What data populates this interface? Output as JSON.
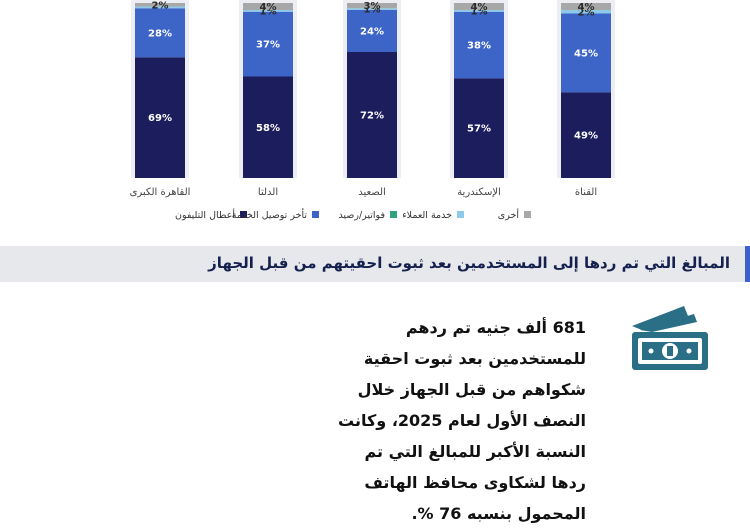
{
  "chart_data": {
    "type": "bar",
    "stacked": true,
    "categories": [
      "القاهرة الكبرى",
      "الدلتا",
      "الصعيد",
      "الإسكندرية",
      "القناة"
    ],
    "series": [
      {
        "name": "أعطال التليفون",
        "color": "#1c1d5c",
        "values": [
          69,
          58,
          72,
          57,
          49
        ],
        "labels": [
          "69%",
          "58%",
          "72%",
          "57%",
          "49%"
        ]
      },
      {
        "name": "تأخر توصيل الخدمة",
        "color": "#3d65c8",
        "values": [
          28,
          37,
          24,
          38,
          45
        ],
        "labels": [
          "28%",
          "37%",
          "24%",
          "38%",
          "45%"
        ]
      },
      {
        "name": "فواتير/رصيد",
        "color": "#2fa37a",
        "values": [
          0,
          0,
          0,
          0,
          0
        ],
        "labels": [
          "",
          "",
          "",
          "",
          ""
        ]
      },
      {
        "name": "خدمة العملاء",
        "color": "#8fc9ea",
        "values": [
          1,
          1,
          1,
          1,
          2
        ],
        "labels": [
          "",
          "1%",
          "1%",
          "1%",
          "2%"
        ]
      },
      {
        "name": "أخرى",
        "color": "#a8a8a8",
        "values": [
          2,
          4,
          3,
          4,
          4
        ],
        "labels": [
          "2%",
          "4%",
          "3%",
          "4%",
          "4%"
        ]
      }
    ],
    "ylim": [
      0,
      100
    ],
    "legend_position": "bottom",
    "grid": false
  },
  "section": {
    "title": "المبالغ التي تم ردها إلى المستخدمين بعد ثبوت احقيتهم من قبل الجهاز"
  },
  "info": {
    "text": "681 ألف جنيه تم ردهم للمستخدمين بعد ثبوت احقية شكواهم من قبل الجهاز خلال النصف الأول لعام 2025، وكانت النسبة الأكبر للمبالغ التي تم ردها لشكاوى محافظ الهاتف المحمول بنسبه 76 %."
  },
  "icon": {
    "name": "money-icon",
    "color": "#2a6f86"
  }
}
